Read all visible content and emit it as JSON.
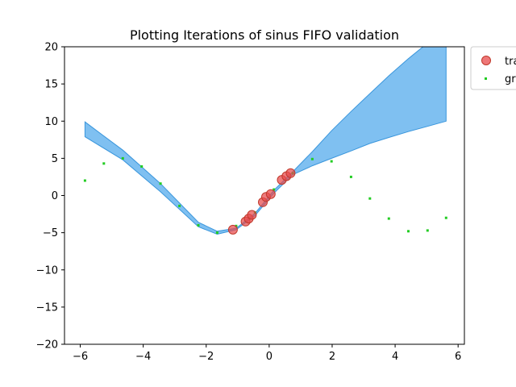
{
  "chart_data": {
    "type": "scatter",
    "title": "Plotting Iterations of sinus FIFO validation",
    "xlabel": "",
    "ylabel": "",
    "xlim": [
      -6.5,
      6.2
    ],
    "ylim": [
      -20,
      20
    ],
    "xticks": [
      -6,
      -4,
      -2,
      0,
      2,
      4,
      6
    ],
    "yticks": [
      -20,
      -15,
      -10,
      -5,
      0,
      5,
      10,
      15,
      20
    ],
    "xtick_labels": [
      "−6",
      "−4",
      "−2",
      "0",
      "2",
      "4",
      "6"
    ],
    "ytick_labels": [
      "−20",
      "−15",
      "−10",
      "−5",
      "0",
      "5",
      "10",
      "15",
      "20"
    ],
    "grid": false,
    "legend_position": "outside-top-right",
    "series": [
      {
        "name": "tra",
        "kind": "markers-large",
        "color": "#e8494b",
        "x": [
          -1.15,
          -0.75,
          -0.65,
          -0.55,
          -0.2,
          -0.1,
          0.05,
          0.4,
          0.55,
          0.68
        ],
        "y": [
          -4.6,
          -3.5,
          -3.1,
          -2.6,
          -0.9,
          -0.2,
          0.2,
          2.1,
          2.6,
          3.0
        ]
      },
      {
        "name": "gr",
        "kind": "markers-small",
        "color": "#22cc22",
        "x": [
          -5.85,
          -5.25,
          -4.65,
          -4.05,
          -3.45,
          -2.85,
          -2.25,
          -1.65,
          -1.05,
          -0.45,
          0.15,
          0.75,
          1.37,
          1.98,
          2.6,
          3.2,
          3.8,
          4.42,
          5.03,
          5.62
        ],
        "y": [
          2.0,
          4.3,
          5.0,
          3.9,
          1.6,
          -1.4,
          -4.0,
          -5.0,
          -4.1,
          -2.3,
          0.8,
          3.0,
          4.9,
          4.6,
          2.5,
          -0.4,
          -3.1,
          -4.8,
          -4.7,
          -3.0
        ]
      }
    ],
    "band": {
      "color": "#4ea8ec",
      "x": [
        -5.85,
        -4.65,
        -3.45,
        -2.25,
        -1.65,
        -1.05,
        -0.45,
        0.15,
        0.75,
        1.37,
        1.98,
        2.6,
        3.2,
        3.8,
        4.42,
        5.03,
        5.62
      ],
      "upper": [
        9.9,
        6.1,
        1.6,
        -3.6,
        -4.8,
        -4.4,
        -2.4,
        0.7,
        3.2,
        5.9,
        8.7,
        11.3,
        13.7,
        16.1,
        18.4,
        20.5,
        22.5
      ],
      "lower": [
        7.9,
        4.8,
        0.5,
        -4.2,
        -5.2,
        -4.6,
        -2.7,
        0.3,
        2.8,
        4.0,
        5.0,
        6.0,
        7.0,
        7.8,
        8.6,
        9.3,
        10.0
      ]
    }
  }
}
